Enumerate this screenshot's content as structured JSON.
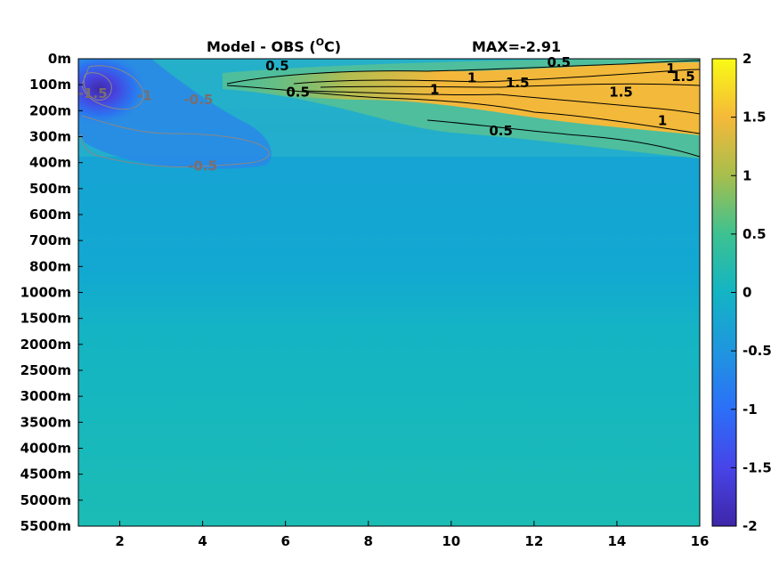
{
  "chart_data": {
    "type": "heatmap",
    "title_left": "Model - OBS (",
    "title_unit_sup": "O",
    "title_unit_tail": "C)",
    "title_right": "MAX=-2.91",
    "x_ticks": [
      "2",
      "4",
      "6",
      "8",
      "10",
      "12",
      "14",
      "16"
    ],
    "x_tick_values": [
      2,
      4,
      6,
      8,
      10,
      12,
      14,
      16
    ],
    "xlim": [
      1,
      16
    ],
    "y_ticks": [
      "0m",
      "100m",
      "200m",
      "300m",
      "400m",
      "500m",
      "600m",
      "700m",
      "800m",
      "1000m",
      "1500m",
      "2000m",
      "2500m",
      "3000m",
      "3500m",
      "4000m",
      "4500m",
      "5000m",
      "5500m"
    ],
    "colorbar_ticks": [
      "2",
      "1.5",
      "1",
      "0.5",
      "0",
      "-0.5",
      "-1",
      "-1.5",
      "-2"
    ],
    "colorbar_values": [
      2,
      1.5,
      1,
      0.5,
      0,
      -0.5,
      -1,
      -1.5,
      -2
    ],
    "clim": [
      -2,
      2
    ],
    "colormap": "parula",
    "grid": false,
    "contour_labels_positive": [
      {
        "text": "0.5",
        "x": 5.8,
        "depth_index": 0.45
      },
      {
        "text": "1",
        "x": 10.5,
        "depth_index": 0.9
      },
      {
        "text": "1.5",
        "x": 11.6,
        "depth_index": 1.1
      },
      {
        "text": "0.5",
        "x": 6.3,
        "depth_index": 1.45
      },
      {
        "text": "1",
        "x": 9.6,
        "depth_index": 1.35
      },
      {
        "text": "0.5",
        "x": 12.6,
        "depth_index": 0.3
      },
      {
        "text": "1",
        "x": 15.3,
        "depth_index": 0.55
      },
      {
        "text": "1.5",
        "x": 15.6,
        "depth_index": 0.85
      },
      {
        "text": "1.5",
        "x": 14.1,
        "depth_index": 1.45
      },
      {
        "text": "1",
        "x": 15.1,
        "depth_index": 2.55
      },
      {
        "text": "0.5",
        "x": 11.2,
        "depth_index": 2.95
      }
    ],
    "contour_labels_negative": [
      {
        "text": "-0.5",
        "x": 3.9,
        "depth_index": 1.75
      },
      {
        "text": "-1",
        "x": 2.6,
        "depth_index": 1.6
      },
      {
        "text": "-1.5",
        "x": 1.35,
        "depth_index": 1.5
      },
      {
        "text": "-0.5",
        "x": 4.0,
        "depth_index": 4.3
      }
    ]
  }
}
